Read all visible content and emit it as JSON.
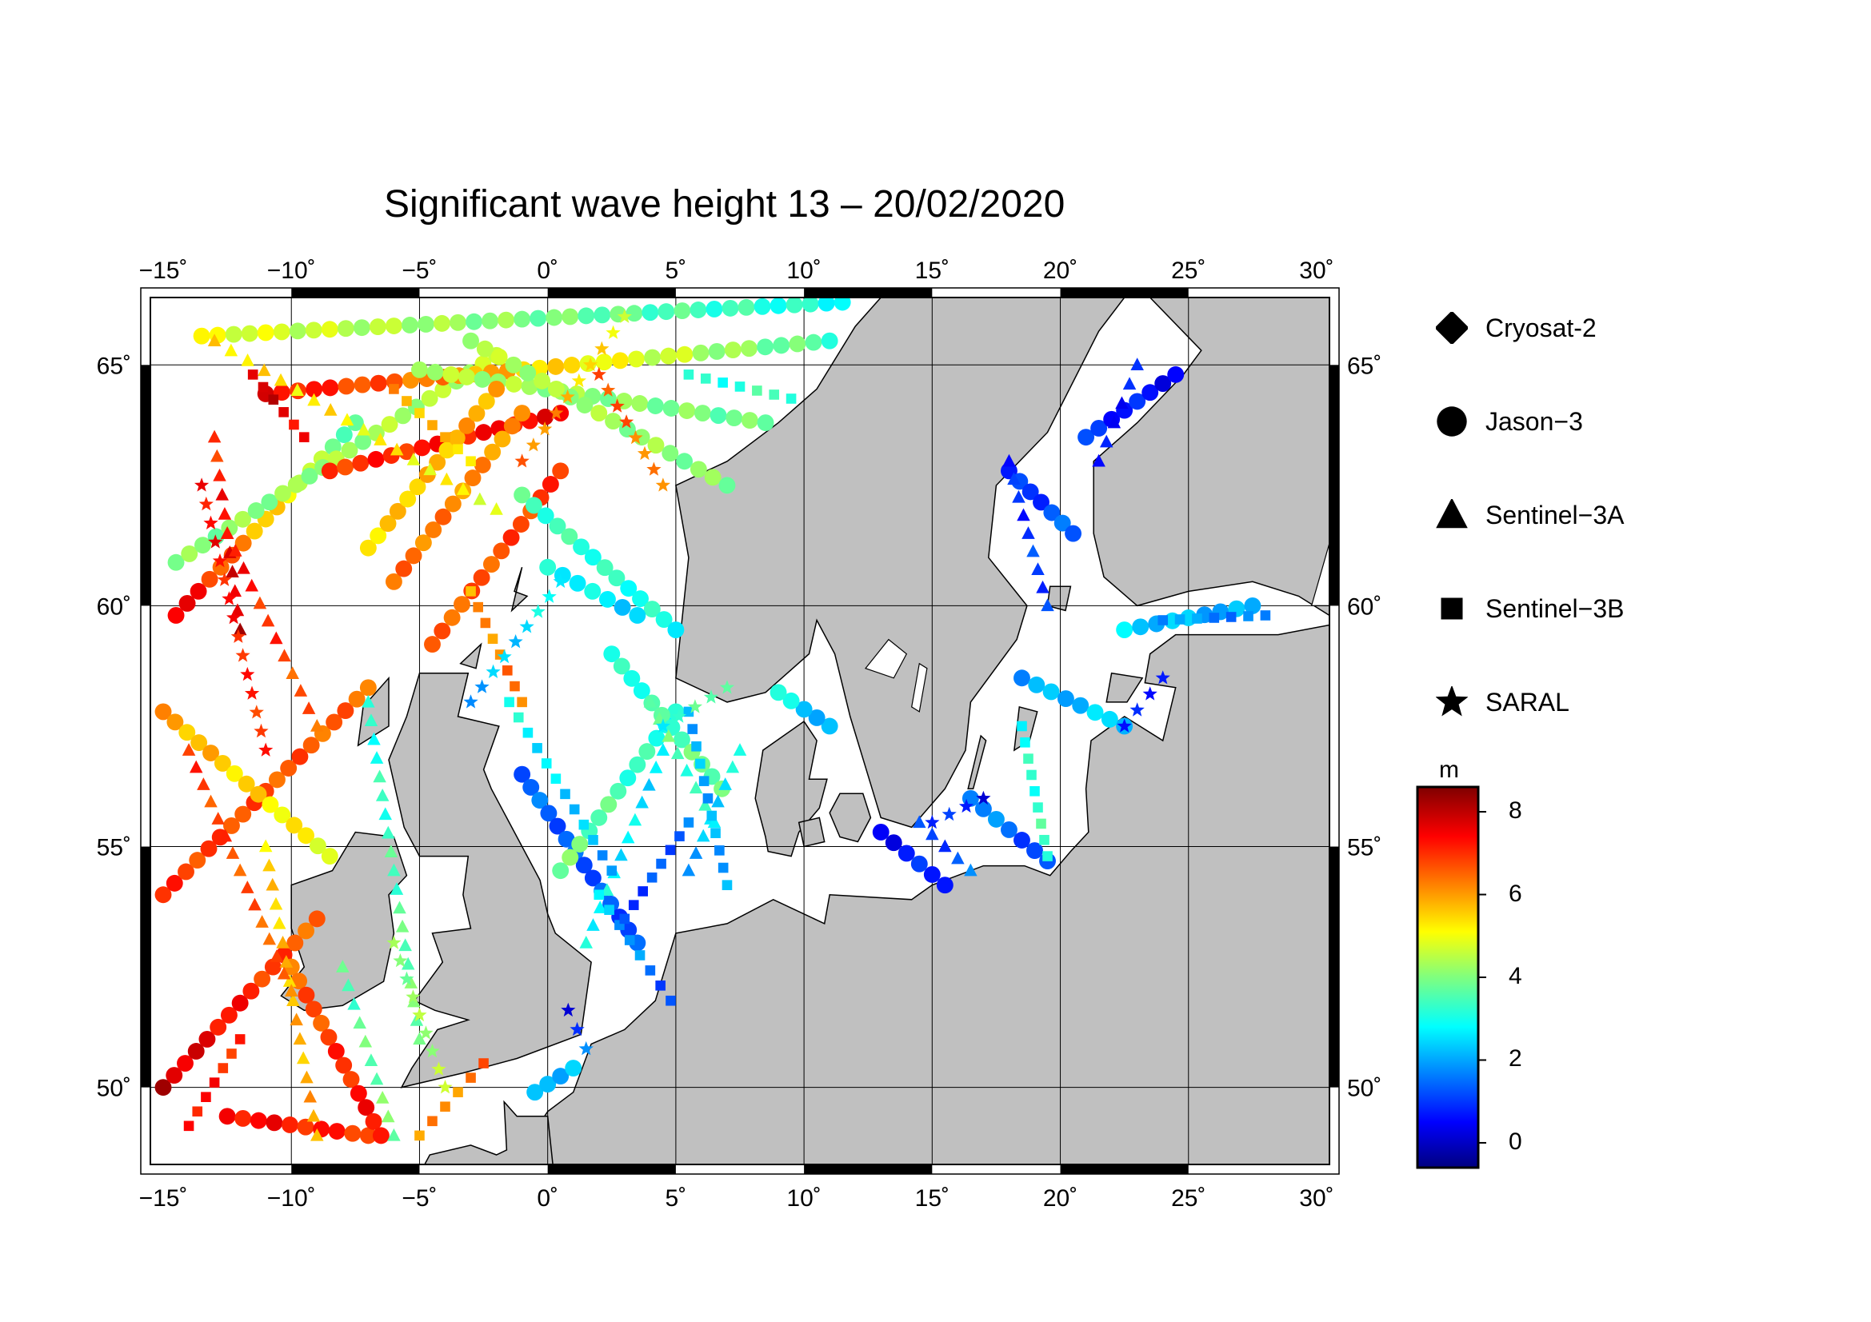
{
  "title": "Significant wave height 13 – 20/02/2020",
  "map": {
    "lon_range": [
      -15.5,
      30.5
    ],
    "lat_range": [
      48.4,
      66.4
    ],
    "lon_ticks": [
      -15,
      -10,
      -5,
      0,
      5,
      10,
      15,
      20,
      25,
      30
    ],
    "lon_tick_labels": [
      "−15˚",
      "−10˚",
      "−5˚",
      "0˚",
      "5˚",
      "10˚",
      "15˚",
      "20˚",
      "25˚",
      "30˚"
    ],
    "lat_ticks": [
      50,
      55,
      60,
      65
    ],
    "lat_tick_labels": [
      "50˚",
      "55˚",
      "60˚",
      "65˚"
    ],
    "gridlines": true,
    "land_color": "#c0c0c0",
    "sea_color": "#ffffff"
  },
  "legend": {
    "placement": "right",
    "items": [
      {
        "label": "Cryosat-2",
        "symbol": "diamond-icon"
      },
      {
        "label": "Jason−3",
        "symbol": "circle-icon"
      },
      {
        "label": "Sentinel−3A",
        "symbol": "triangle-icon"
      },
      {
        "label": "Sentinel−3B",
        "symbol": "square-icon"
      },
      {
        "label": "SARAL",
        "symbol": "star-icon"
      }
    ]
  },
  "colorbar": {
    "unit": "m",
    "range": [
      -0.6,
      8.6
    ],
    "ticks": [
      0,
      2,
      4,
      6,
      8
    ],
    "tick_labels": [
      "0",
      "2",
      "4",
      "6",
      "8"
    ],
    "colormap": "jet"
  },
  "chart_data": {
    "type": "scatter",
    "xlabel": "",
    "ylabel": "",
    "tracks": [
      {
        "satellite": "Jason−3",
        "symbol": "circle",
        "start": [
          -15.0,
          54.0
        ],
        "end": [
          -7.0,
          58.3
        ],
        "values": [
          7,
          6.5
        ]
      },
      {
        "satellite": "Jason−3",
        "symbol": "circle",
        "start": [
          -15.0,
          57.8
        ],
        "end": [
          -8.5,
          54.8
        ],
        "values": [
          6,
          5
        ]
      },
      {
        "satellite": "Jason−3",
        "symbol": "circle",
        "start": [
          -15.0,
          50.0
        ],
        "end": [
          -9.0,
          53.5
        ],
        "values": [
          8,
          6.5
        ]
      },
      {
        "satellite": "Jason−3",
        "symbol": "circle",
        "start": [
          -12.5,
          49.4
        ],
        "end": [
          -7.0,
          49.0
        ],
        "values": [
          7.5,
          7
        ]
      },
      {
        "satellite": "Jason−3",
        "symbol": "circle",
        "start": [
          -10.0,
          52.5
        ],
        "end": [
          -6.5,
          49.0
        ],
        "values": [
          6.5,
          7.5
        ]
      },
      {
        "satellite": "Jason−3",
        "symbol": "circle",
        "start": [
          -14.5,
          59.8
        ],
        "end": [
          -7.5,
          63.8
        ],
        "values": [
          7.8,
          3.5
        ]
      },
      {
        "satellite": "Jason−3",
        "symbol": "circle",
        "start": [
          -14.5,
          60.9
        ],
        "end": [
          -2.0,
          65.2
        ],
        "values": [
          4,
          4.5
        ]
      },
      {
        "satellite": "Jason−3",
        "symbol": "circle",
        "start": [
          -13.5,
          65.6
        ],
        "end": [
          11.5,
          66.3
        ],
        "values": [
          5,
          3
        ]
      },
      {
        "satellite": "Jason−3",
        "symbol": "circle",
        "start": [
          -11.0,
          64.4
        ],
        "end": [
          11.0,
          65.5
        ],
        "values": [
          7.5,
          3.5
        ]
      },
      {
        "satellite": "Jason−3",
        "symbol": "circle",
        "start": [
          -8.5,
          62.8
        ],
        "end": [
          0.5,
          64.0
        ],
        "values": [
          7,
          7.5
        ]
      },
      {
        "satellite": "Jason−3",
        "symbol": "circle",
        "start": [
          -5.0,
          64.9
        ],
        "end": [
          8.5,
          63.8
        ],
        "values": [
          4.5,
          3.8
        ]
      },
      {
        "satellite": "Jason−3",
        "symbol": "circle",
        "start": [
          -3.0,
          65.5
        ],
        "end": [
          7.0,
          62.5
        ],
        "values": [
          4.5,
          4
        ]
      },
      {
        "satellite": "Jason−3",
        "symbol": "circle",
        "start": [
          -6.0,
          60.5
        ],
        "end": [
          -1.0,
          64.0
        ],
        "values": [
          6.5,
          6
        ]
      },
      {
        "satellite": "Jason−3",
        "symbol": "circle",
        "start": [
          -4.5,
          59.2
        ],
        "end": [
          0.5,
          62.8
        ],
        "values": [
          6.5,
          7
        ]
      },
      {
        "satellite": "Jason−3",
        "symbol": "circle",
        "start": [
          -1.0,
          62.3
        ],
        "end": [
          5.0,
          59.5
        ],
        "values": [
          3.5,
          3
        ]
      },
      {
        "satellite": "Jason−3",
        "symbol": "circle",
        "start": [
          0.0,
          60.8
        ],
        "end": [
          3.5,
          59.8
        ],
        "values": [
          3,
          2.5
        ]
      },
      {
        "satellite": "Jason−3",
        "symbol": "circle",
        "start": [
          -7.0,
          61.2
        ],
        "end": [
          -2.0,
          64.5
        ],
        "values": [
          5.5,
          6
        ]
      },
      {
        "satellite": "Jason−3",
        "symbol": "circle",
        "start": [
          -1.0,
          56.5
        ],
        "end": [
          3.5,
          53.0
        ],
        "values": [
          1.5,
          1.2
        ]
      },
      {
        "satellite": "Jason−3",
        "symbol": "circle",
        "start": [
          0.5,
          54.5
        ],
        "end": [
          5.0,
          57.8
        ],
        "values": [
          4,
          3
        ]
      },
      {
        "satellite": "Jason−3",
        "symbol": "circle",
        "start": [
          2.5,
          59.0
        ],
        "end": [
          6.8,
          56.2
        ],
        "values": [
          3,
          4
        ]
      },
      {
        "satellite": "Jason−3",
        "symbol": "circle",
        "start": [
          -0.5,
          49.9
        ],
        "end": [
          1.0,
          50.4
        ],
        "values": [
          2,
          2.5
        ]
      },
      {
        "satellite": "Jason−3",
        "symbol": "circle",
        "start": [
          11.0,
          57.5
        ],
        "end": [
          9.0,
          58.2
        ],
        "values": [
          2,
          3
        ]
      },
      {
        "satellite": "Jason−3",
        "symbol": "circle",
        "start": [
          13.0,
          55.3
        ],
        "end": [
          15.5,
          54.2
        ],
        "values": [
          0.5,
          1
        ]
      },
      {
        "satellite": "Jason−3",
        "symbol": "circle",
        "start": [
          16.5,
          56.0
        ],
        "end": [
          19.5,
          54.7
        ],
        "values": [
          2,
          1
        ]
      },
      {
        "satellite": "Jason−3",
        "symbol": "circle",
        "start": [
          18.5,
          58.5
        ],
        "end": [
          22.5,
          57.5
        ],
        "values": [
          2,
          2.5
        ]
      },
      {
        "satellite": "Jason−3",
        "symbol": "circle",
        "start": [
          18.0,
          62.8
        ],
        "end": [
          20.5,
          61.5
        ],
        "values": [
          0.8,
          1.5
        ]
      },
      {
        "satellite": "Jason−3",
        "symbol": "circle",
        "start": [
          21.0,
          63.5
        ],
        "end": [
          24.5,
          64.8
        ],
        "values": [
          1,
          0.5
        ]
      },
      {
        "satellite": "Jason−3",
        "symbol": "circle",
        "start": [
          22.5,
          59.5
        ],
        "end": [
          27.5,
          60.0
        ],
        "values": [
          2.5,
          2
        ]
      },
      {
        "satellite": "Sentinel−3A",
        "symbol": "triangle",
        "start": [
          -13.0,
          63.5
        ],
        "end": [
          -12.0,
          59.5
        ],
        "values": [
          7,
          8
        ]
      },
      {
        "satellite": "Sentinel−3A",
        "symbol": "triangle",
        "start": [
          -12.5,
          61.5
        ],
        "end": [
          -9.0,
          57.5
        ],
        "values": [
          7.5,
          6.5
        ]
      },
      {
        "satellite": "Sentinel−3A",
        "symbol": "triangle",
        "start": [
          -11.0,
          55.0
        ],
        "end": [
          -9.0,
          49.0
        ],
        "values": [
          5.5,
          6
        ]
      },
      {
        "satellite": "Sentinel−3A",
        "symbol": "triangle",
        "start": [
          -14.0,
          57.0
        ],
        "end": [
          -10.0,
          52.0
        ],
        "values": [
          7,
          6.5
        ]
      },
      {
        "satellite": "Sentinel−3A",
        "symbol": "triangle",
        "start": [
          -7.0,
          58.0
        ],
        "end": [
          -5.0,
          51.0
        ],
        "values": [
          3,
          4
        ]
      },
      {
        "satellite": "Sentinel−3A",
        "symbol": "triangle",
        "start": [
          -8.0,
          52.5
        ],
        "end": [
          -6.0,
          49.0
        ],
        "values": [
          3.5,
          4
        ]
      },
      {
        "satellite": "Sentinel−3A",
        "symbol": "triangle",
        "start": [
          1.5,
          53.0
        ],
        "end": [
          4.5,
          57.0
        ],
        "values": [
          3,
          2.5
        ]
      },
      {
        "satellite": "Sentinel−3A",
        "symbol": "triangle",
        "start": [
          5.5,
          54.5
        ],
        "end": [
          7.5,
          57.0
        ],
        "values": [
          2,
          3
        ]
      },
      {
        "satellite": "Sentinel−3A",
        "symbol": "triangle",
        "start": [
          4.0,
          58.0
        ],
        "end": [
          6.5,
          55.5
        ],
        "values": [
          4,
          3
        ]
      },
      {
        "satellite": "Sentinel−3A",
        "symbol": "triangle",
        "start": [
          18.0,
          63.0
        ],
        "end": [
          19.5,
          60.0
        ],
        "values": [
          0.8,
          1.2
        ]
      },
      {
        "satellite": "Sentinel−3A",
        "symbol": "triangle",
        "start": [
          21.5,
          63.0
        ],
        "end": [
          23.0,
          65.0
        ],
        "values": [
          0.5,
          0.8
        ]
      },
      {
        "satellite": "Sentinel−3A",
        "symbol": "triangle",
        "start": [
          14.5,
          55.5
        ],
        "end": [
          16.5,
          54.5
        ],
        "values": [
          1,
          1.5
        ]
      },
      {
        "satellite": "Sentinel−3A",
        "symbol": "triangle",
        "start": [
          -13.0,
          65.5
        ],
        "end": [
          -2.0,
          62.0
        ],
        "values": [
          5.5,
          5
        ]
      },
      {
        "satellite": "Sentinel−3B",
        "symbol": "square",
        "start": [
          -14.0,
          49.2
        ],
        "end": [
          -12.0,
          51.0
        ],
        "values": [
          7.5,
          7
        ]
      },
      {
        "satellite": "Sentinel−3B",
        "symbol": "square",
        "start": [
          -11.5,
          64.8
        ],
        "end": [
          -9.5,
          63.5
        ],
        "values": [
          8,
          7.5
        ]
      },
      {
        "satellite": "Sentinel−3B",
        "symbol": "square",
        "start": [
          -3.0,
          60.3
        ],
        "end": [
          -1.0,
          58.0
        ],
        "values": [
          6,
          6.5
        ]
      },
      {
        "satellite": "Sentinel−3B",
        "symbol": "square",
        "start": [
          -1.5,
          58.0
        ],
        "end": [
          2.5,
          54.5
        ],
        "values": [
          3,
          2
        ]
      },
      {
        "satellite": "Sentinel−3B",
        "symbol": "square",
        "start": [
          2.0,
          54.0
        ],
        "end": [
          4.8,
          51.8
        ],
        "values": [
          2.5,
          1.2
        ]
      },
      {
        "satellite": "Sentinel−3B",
        "symbol": "square",
        "start": [
          3.0,
          53.5
        ],
        "end": [
          5.5,
          55.5
        ],
        "values": [
          1,
          1.5
        ]
      },
      {
        "satellite": "Sentinel−3B",
        "symbol": "square",
        "start": [
          5.5,
          57.8
        ],
        "end": [
          7.0,
          54.2
        ],
        "values": [
          2.2,
          2
        ]
      },
      {
        "satellite": "Sentinel−3B",
        "symbol": "square",
        "start": [
          18.5,
          57.5
        ],
        "end": [
          19.5,
          54.8
        ],
        "values": [
          3,
          3.5
        ]
      },
      {
        "satellite": "Sentinel−3B",
        "symbol": "square",
        "start": [
          24.0,
          59.7
        ],
        "end": [
          28.0,
          59.8
        ],
        "values": [
          2,
          1.5
        ]
      },
      {
        "satellite": "Sentinel−3B",
        "symbol": "square",
        "start": [
          -5.0,
          49.0
        ],
        "end": [
          -2.5,
          50.5
        ],
        "values": [
          6,
          6.5
        ]
      },
      {
        "satellite": "Sentinel−3B",
        "symbol": "square",
        "start": [
          5.5,
          64.8
        ],
        "end": [
          9.5,
          64.3
        ],
        "values": [
          3,
          3.5
        ]
      },
      {
        "satellite": "Sentinel−3B",
        "symbol": "square",
        "start": [
          -6.0,
          64.5
        ],
        "end": [
          -3.0,
          63.0
        ],
        "values": [
          6,
          5.5
        ]
      },
      {
        "satellite": "SARAL",
        "symbol": "star",
        "start": [
          -13.5,
          62.5
        ],
        "end": [
          -11.0,
          57.0
        ],
        "values": [
          7.5,
          7
        ]
      },
      {
        "satellite": "SARAL",
        "symbol": "star",
        "start": [
          -3.0,
          58.0
        ],
        "end": [
          0.5,
          60.5
        ],
        "values": [
          2,
          3
        ]
      },
      {
        "satellite": "SARAL",
        "symbol": "star",
        "start": [
          4.5,
          57.5
        ],
        "end": [
          7.0,
          58.3
        ],
        "values": [
          3,
          4
        ]
      },
      {
        "satellite": "SARAL",
        "symbol": "star",
        "start": [
          15.0,
          55.5
        ],
        "end": [
          17.0,
          56.0
        ],
        "values": [
          1,
          0.5
        ]
      },
      {
        "satellite": "SARAL",
        "symbol": "star",
        "start": [
          22.5,
          57.5
        ],
        "end": [
          24.0,
          58.5
        ],
        "values": [
          0.5,
          1
        ]
      },
      {
        "satellite": "SARAL",
        "symbol": "star",
        "start": [
          -6.0,
          53.0
        ],
        "end": [
          -4.0,
          50.0
        ],
        "values": [
          4,
          4.5
        ]
      },
      {
        "satellite": "SARAL",
        "symbol": "star",
        "start": [
          -1.0,
          63.0
        ],
        "end": [
          3.0,
          66.0
        ],
        "values": [
          6.5,
          5
        ]
      },
      {
        "satellite": "SARAL",
        "symbol": "star",
        "start": [
          2.0,
          64.8
        ],
        "end": [
          4.5,
          62.5
        ],
        "values": [
          7,
          6
        ]
      },
      {
        "satellite": "SARAL",
        "symbol": "star",
        "start": [
          0.8,
          51.6
        ],
        "end": [
          1.5,
          50.8
        ],
        "values": [
          0.5,
          1.5
        ]
      }
    ]
  }
}
